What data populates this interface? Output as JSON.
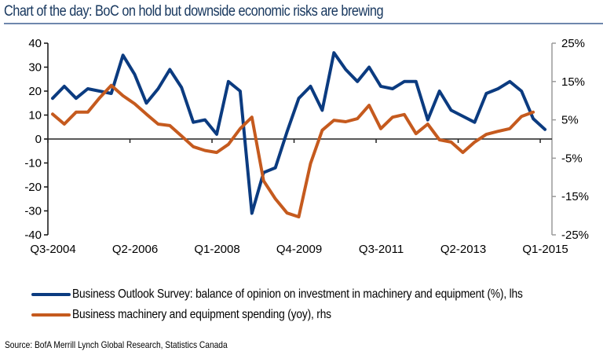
{
  "header": {
    "title": "Chart of the day: BoC on hold but downside economic risks are brewing"
  },
  "chart_data": {
    "type": "line",
    "title": "Chart of the day: BoC on hold but downside economic risks are brewing",
    "xlabel": "",
    "ylabel": "",
    "x": [
      "Q3-2004",
      "Q4-2004",
      "Q1-2005",
      "Q2-2005",
      "Q3-2005",
      "Q4-2005",
      "Q1-2006",
      "Q2-2006",
      "Q3-2006",
      "Q4-2006",
      "Q1-2007",
      "Q2-2007",
      "Q3-2007",
      "Q4-2007",
      "Q1-2008",
      "Q2-2008",
      "Q3-2008",
      "Q4-2008",
      "Q1-2009",
      "Q2-2009",
      "Q3-2009",
      "Q4-2009",
      "Q1-2010",
      "Q2-2010",
      "Q3-2010",
      "Q4-2010",
      "Q1-2011",
      "Q2-2011",
      "Q3-2011",
      "Q4-2011",
      "Q1-2012",
      "Q2-2012",
      "Q3-2012",
      "Q4-2012",
      "Q1-2013",
      "Q2-2013",
      "Q3-2013",
      "Q4-2013",
      "Q1-2014",
      "Q2-2014",
      "Q3-2014",
      "Q4-2014",
      "Q1-2015"
    ],
    "x_tick_labels": [
      "Q3-2004",
      "Q2-2006",
      "Q1-2008",
      "Q4-2009",
      "Q3-2011",
      "Q2-2013",
      "Q1-2015"
    ],
    "x_tick_every": 7,
    "y_left": {
      "ylim": [
        -40,
        40
      ],
      "ticks": [
        40,
        30,
        20,
        10,
        0,
        -10,
        -20,
        -30,
        -40
      ],
      "tick_labels": [
        "40",
        "30",
        "20",
        "10",
        "0",
        "-10",
        "-20",
        "-30",
        "-40"
      ]
    },
    "y_right": {
      "ylim": [
        -25,
        25
      ],
      "ticks": [
        25,
        15,
        5,
        -5,
        -15,
        -25
      ],
      "tick_labels": [
        "25%",
        "15%",
        "5%",
        "-5%",
        "-15%",
        "-25%"
      ]
    },
    "grid": false,
    "legend_position": "bottom",
    "series": [
      {
        "name": "Business Outlook Survey: balance of opinion on investment in machinery and equipment (%), lhs",
        "axis": "left",
        "color": "#0b3b80",
        "values": [
          17,
          22,
          17,
          21,
          20,
          19,
          35,
          27,
          15,
          21,
          29,
          21.5,
          7,
          8,
          2,
          24,
          20,
          -31,
          -14,
          -12,
          3,
          17,
          22,
          12,
          36,
          29,
          24,
          30,
          22,
          21,
          24,
          24,
          8,
          20,
          12,
          9.5,
          7,
          19,
          21,
          24,
          20,
          8.5,
          4
        ]
      },
      {
        "name": "Business machinery and equipment spending (yoy), rhs",
        "axis": "right",
        "color": "#c55a1e",
        "values": [
          6.5,
          3.9,
          7,
          7,
          10.7,
          14,
          11.3,
          9.2,
          6.5,
          3.9,
          3.5,
          0.8,
          -2,
          -3,
          -3.5,
          -1.4,
          2.7,
          5.7,
          -10.9,
          -15.6,
          -19.3,
          -20.3,
          -6.4,
          2.3,
          4.9,
          4.5,
          5.3,
          8.8,
          2.7,
          5.7,
          6.4,
          1.4,
          3.9,
          -0.2,
          -0.8,
          -3.5,
          -0.8,
          1.2,
          2,
          2.7,
          5.9,
          7,
          null
        ]
      }
    ]
  },
  "legend": {
    "items": [
      {
        "label": "Business Outlook Survey: balance of opinion on investment in machinery and equipment (%), lhs",
        "color": "#0b3b80"
      },
      {
        "label": "Business machinery and equipment spending (yoy), rhs",
        "color": "#c55a1e"
      }
    ]
  },
  "footer": {
    "source": "Source: BofA Merrill Lynch Global Research, Statistics Canada"
  }
}
